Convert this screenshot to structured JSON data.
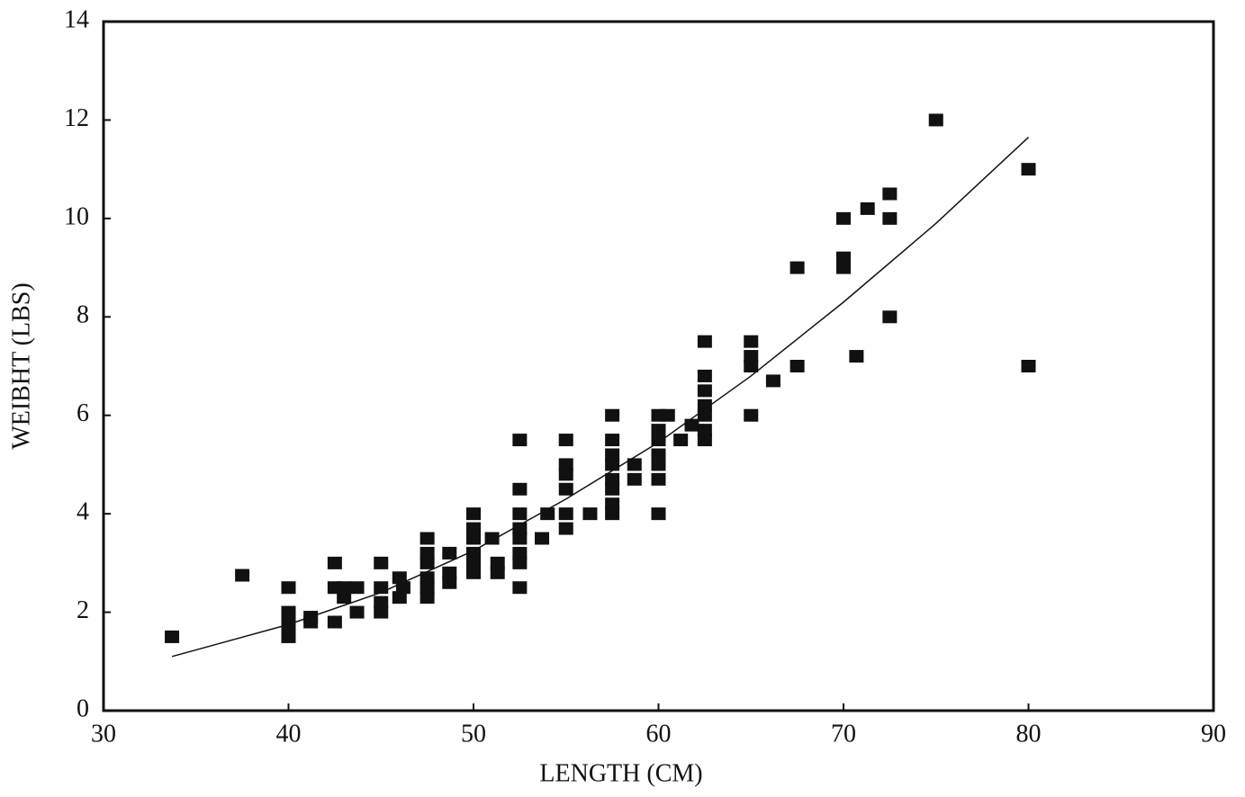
{
  "chart_data": {
    "type": "scatter",
    "x_label": "LENGTH (CM)",
    "y_label": "WEIBHT (LBS)",
    "xlim": [
      30,
      90
    ],
    "ylim": [
      0,
      14
    ],
    "xticks": [
      30,
      40,
      50,
      60,
      70,
      80,
      90
    ],
    "yticks": [
      0,
      2,
      4,
      6,
      8,
      10,
      12,
      14
    ],
    "series": [
      {
        "color": "#111111",
        "mode": "markers",
        "x": [
          33.7,
          37.5,
          40,
          40,
          40,
          40,
          40,
          41.2,
          41.2,
          42.5,
          42.5,
          42.5,
          43,
          43,
          43.7,
          43.7,
          45,
          45,
          45,
          45,
          46,
          46,
          46.2,
          47.5,
          47.5,
          47.5,
          47.5,
          47.5,
          47.5,
          48.7,
          48.7,
          48.7,
          50,
          50,
          50,
          50,
          50,
          50,
          51,
          51.3,
          51.3,
          52.5,
          52.5,
          52.5,
          52.5,
          52.5,
          52.5,
          52.5,
          52.5,
          53.7,
          54,
          55,
          55,
          55,
          55,
          55,
          55,
          56.3,
          57.5,
          57.5,
          57.5,
          57.5,
          57.5,
          57.5,
          57.5,
          57.5,
          58.7,
          58.7,
          60,
          60,
          60,
          60,
          60,
          60,
          60,
          60.5,
          61.2,
          61.8,
          62.5,
          62.5,
          62.5,
          62.5,
          62.5,
          62.5,
          62.5,
          65,
          65,
          65,
          65,
          66.2,
          67.5,
          67.5,
          70,
          70,
          70,
          70.7,
          71.3,
          72.5,
          72.5,
          72.5,
          75,
          80,
          80
        ],
        "values": [
          1.5,
          2.75,
          2.5,
          2.0,
          1.8,
          1.6,
          1.5,
          1.9,
          1.8,
          3.0,
          2.5,
          1.8,
          2.3,
          2.5,
          2.5,
          2.0,
          3.0,
          2.5,
          2.2,
          2.0,
          2.7,
          2.3,
          2.5,
          3.5,
          3.2,
          3.0,
          2.7,
          2.5,
          2.3,
          3.2,
          2.8,
          2.6,
          4.0,
          3.7,
          3.5,
          3.2,
          3.0,
          2.8,
          3.5,
          3.0,
          2.8,
          5.5,
          4.5,
          4.0,
          3.7,
          3.5,
          3.2,
          3.0,
          2.5,
          3.5,
          4.0,
          5.5,
          5.0,
          4.8,
          4.5,
          4.0,
          3.7,
          4.0,
          6.0,
          5.5,
          5.2,
          5.0,
          4.7,
          4.5,
          4.2,
          4.0,
          5.0,
          4.7,
          6.0,
          5.7,
          5.5,
          5.2,
          5.0,
          4.7,
          4.0,
          6.0,
          5.5,
          5.8,
          7.5,
          6.8,
          6.5,
          6.2,
          6.0,
          5.7,
          5.5,
          7.5,
          7.2,
          7.0,
          6.0,
          6.7,
          9.0,
          7.0,
          10.0,
          9.2,
          9.0,
          7.2,
          10.2,
          10.5,
          10.0,
          8.0,
          12.0,
          11.0,
          7.0
        ]
      },
      {
        "color": "#111111",
        "mode": "line",
        "x": [
          33.7,
          40,
          45,
          50,
          55,
          60,
          65,
          70,
          75,
          80
        ],
        "values": [
          1.1,
          1.75,
          2.4,
          3.25,
          4.3,
          5.45,
          6.8,
          8.3,
          9.9,
          11.65
        ]
      }
    ]
  }
}
